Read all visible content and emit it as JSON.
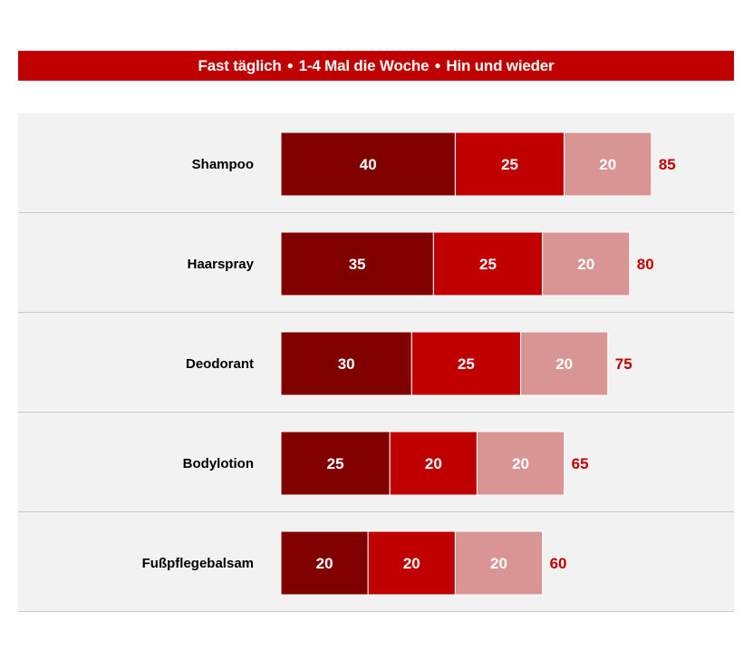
{
  "legend": {
    "items": [
      "Fast täglich",
      "1-4 Mal die Woche",
      "Hin und wieder"
    ],
    "separator": "●"
  },
  "colors": {
    "header": "#c00000",
    "series": [
      "#800000",
      "#c00000",
      "#d99594"
    ],
    "total": "#c00000",
    "panel": "#f2f2f2",
    "divider": "#c8c8c8"
  },
  "chart_data": {
    "type": "bar",
    "orientation": "horizontal",
    "stacked": true,
    "categories": [
      "Shampoo",
      "Haarspray",
      "Deodorant",
      "Bodylotion",
      "Fußpflegebalsam"
    ],
    "series": [
      {
        "name": "Fast täglich",
        "values": [
          40,
          35,
          30,
          25,
          20
        ]
      },
      {
        "name": "1-4 Mal die Woche",
        "values": [
          25,
          25,
          25,
          20,
          20
        ]
      },
      {
        "name": "Hin und wieder",
        "values": [
          20,
          20,
          20,
          20,
          20
        ]
      }
    ],
    "totals": [
      85,
      80,
      75,
      65,
      60
    ],
    "legend_position": "top",
    "grid": false
  }
}
